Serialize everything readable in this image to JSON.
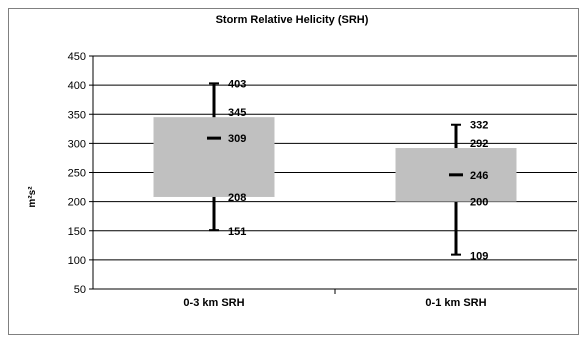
{
  "chart_data": {
    "type": "box",
    "title": "Storm Relative Helicity (SRH)",
    "ylabel": "m²s²",
    "ylim": [
      50,
      450
    ],
    "yticks": [
      50,
      100,
      150,
      200,
      250,
      300,
      350,
      400,
      450
    ],
    "grid": true,
    "categories": [
      "0-3 km SRH",
      "0-1 km SRH"
    ],
    "boxes": [
      {
        "min": 151,
        "q1": 208,
        "median": 309,
        "q3": 345,
        "max": 403
      },
      {
        "min": 109,
        "q1": 200,
        "median": 246,
        "q3": 292,
        "max": 332
      }
    ],
    "colors": {
      "box": "#c0c0c0",
      "whisker": "#000000",
      "grid": "#000000"
    }
  }
}
